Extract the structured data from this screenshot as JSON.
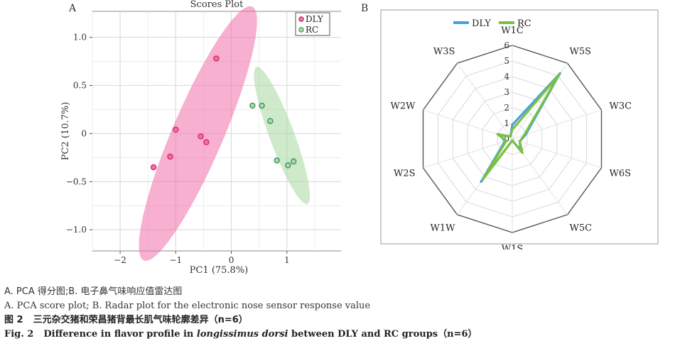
{
  "panel_a": {
    "label": "A",
    "chart_data": {
      "type": "scatter",
      "title": "Scores Plot",
      "xlabel": "PC1 (75.8%)",
      "ylabel": "PC2 (10.7%)",
      "xlim": [
        -2.5,
        2.0
      ],
      "ylim": [
        -1.22,
        1.27
      ],
      "xticks": [
        "−2",
        "−1",
        "0",
        "1"
      ],
      "yticks": [
        "1.0",
        "0.5",
        "0",
        "−0.5",
        "−1.0"
      ],
      "xtick_values": [
        -2,
        -1,
        0,
        1
      ],
      "ytick_values": [
        1.0,
        0.5,
        0,
        -0.5,
        -1.0
      ],
      "grid": true,
      "legend_position": "top-right",
      "series": [
        {
          "name": "DLY",
          "color": "#d81b60",
          "fill": "#f06fa8",
          "points": [
            [
              -0.27,
              0.78
            ],
            [
              -1.0,
              0.04
            ],
            [
              -0.55,
              -0.03
            ],
            [
              -0.45,
              -0.09
            ],
            [
              -1.1,
              -0.24
            ],
            [
              -1.4,
              -0.35
            ]
          ],
          "ellipse": {
            "cx": -0.6,
            "cy": 0.0,
            "rx": 1.65,
            "ry": 0.4,
            "angle_deg": 52
          }
        },
        {
          "name": "RC",
          "color": "#2e8b57",
          "fill": "#a8d8a0",
          "points": [
            [
              0.38,
              0.29
            ],
            [
              0.55,
              0.29
            ],
            [
              0.7,
              0.13
            ],
            [
              0.82,
              -0.28
            ],
            [
              1.02,
              -0.33
            ],
            [
              1.12,
              -0.29
            ]
          ],
          "ellipse": {
            "cx": 0.91,
            "cy": -0.02,
            "rx": 0.85,
            "ry": 0.2,
            "angle_deg": -56
          }
        }
      ]
    }
  },
  "panel_b": {
    "label": "B",
    "chart_data": {
      "type": "radar",
      "categories": [
        "W1C",
        "W5S",
        "W3C",
        "W6S",
        "W5C",
        "W1S",
        "W1W",
        "W2S",
        "W2W",
        "W3S"
      ],
      "rticks": [
        "0",
        "1",
        "2",
        "3",
        "4",
        "5",
        "6"
      ],
      "rmax": 6,
      "legend_position": "top",
      "series": [
        {
          "name": "DLY",
          "color": "#4a9fe0",
          "values": [
            0.9,
            5.2,
            0.9,
            0.5,
            0.9,
            0.1,
            3.4,
            0.5,
            0.8,
            0.2
          ]
        },
        {
          "name": "RC",
          "color": "#7ac143",
          "values": [
            0.6,
            5.1,
            0.8,
            0.5,
            1.1,
            0.1,
            3.2,
            0.4,
            1.0,
            0.2
          ]
        }
      ]
    }
  },
  "caption": {
    "line1": "A. PCA 得分图;B. 电子鼻气味响应值雷达图",
    "line2": "A.  PCA score plot;  B.  Radar plot for the electronic nose sensor response value",
    "fig_cn_num": "图 2",
    "fig_cn_text": "三元杂交猪和荣昌猪背最长肌气味轮廓差异（n=6）",
    "fig_en_num": "Fig. 2",
    "fig_en_pre": "Difference in flavor profile in ",
    "fig_en_italic": "longissimus dorsi",
    "fig_en_post": " between DLY and RC groups（n=6）"
  }
}
